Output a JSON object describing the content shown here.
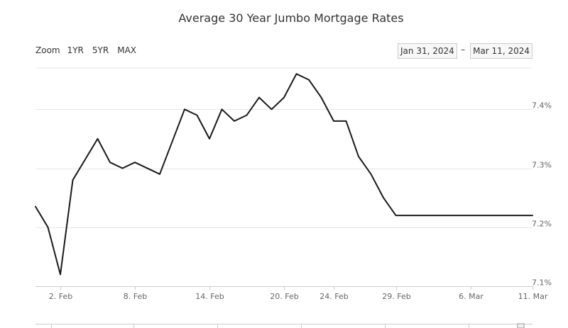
{
  "title": "Average 30 Year Jumbo Mortgage Rates",
  "zoom": {
    "label": "Zoom",
    "buttons": [
      "1YR",
      "5YR",
      "MAX"
    ]
  },
  "range": {
    "from": "Jan 31, 2024",
    "separator": "–",
    "to": "Mar 11, 2024"
  },
  "colors": {
    "line": "#1a1a1a",
    "grid": "#e6e6e6"
  },
  "chart_data": {
    "type": "line",
    "title": "Average 30 Year Jumbo Mortgage Rates",
    "xlabel": "",
    "ylabel": "",
    "ylim": [
      7.1,
      7.47
    ],
    "xlim": [
      "2024-01-31",
      "2024-03-11"
    ],
    "yticks": [
      7.1,
      7.2,
      7.3,
      7.4
    ],
    "ytick_labels": [
      "7.1%",
      "7.2%",
      "7.3%",
      "7.4%"
    ],
    "xticks": [
      "2024-02-02",
      "2024-02-08",
      "2024-02-14",
      "2024-02-20",
      "2024-02-24",
      "2024-02-29",
      "2024-03-06",
      "2024-03-11"
    ],
    "xtick_labels": [
      "2. Feb",
      "8. Feb",
      "14. Feb",
      "20. Feb",
      "24. Feb",
      "29. Feb",
      "6. Mar",
      "11. Mar"
    ],
    "grid": true,
    "legend": "none",
    "series": [
      {
        "x": [
          "2024-01-31",
          "2024-02-01",
          "2024-02-02",
          "2024-02-03",
          "2024-02-05",
          "2024-02-06",
          "2024-02-07",
          "2024-02-08",
          "2024-02-10",
          "2024-02-12",
          "2024-02-13",
          "2024-02-14",
          "2024-02-15",
          "2024-02-16",
          "2024-02-17",
          "2024-02-18",
          "2024-02-19",
          "2024-02-20",
          "2024-02-21",
          "2024-02-22",
          "2024-02-23",
          "2024-02-24",
          "2024-02-25",
          "2024-02-26",
          "2024-02-27",
          "2024-02-28",
          "2024-02-29",
          "2024-03-01",
          "2024-03-02",
          "2024-03-04",
          "2024-03-05",
          "2024-03-06",
          "2024-03-07",
          "2024-03-08",
          "2024-03-11"
        ],
        "values": [
          7.235,
          7.2,
          7.12,
          7.28,
          7.35,
          7.31,
          7.3,
          7.31,
          7.29,
          7.4,
          7.39,
          7.35,
          7.4,
          7.38,
          7.39,
          7.42,
          7.4,
          7.42,
          7.46,
          7.45,
          7.42,
          7.38,
          7.38,
          7.32,
          7.29,
          7.25,
          7.22,
          7.22,
          7.22,
          7.22,
          7.22,
          7.22,
          7.22,
          7.22,
          7.22
        ]
      }
    ]
  }
}
